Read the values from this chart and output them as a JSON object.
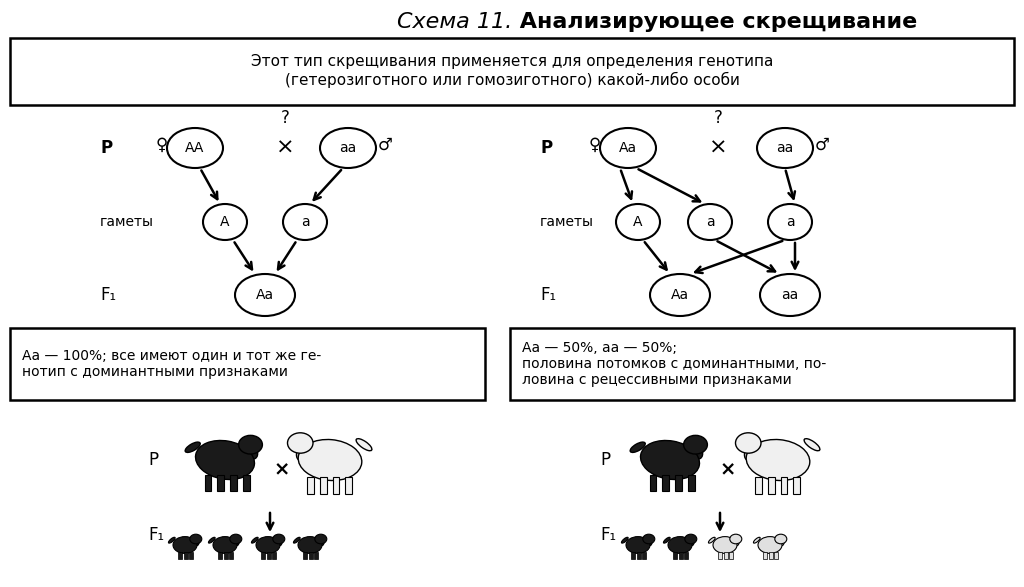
{
  "title_italic": "Схема 11.",
  "title_bold": " Анализирующее скрещивание",
  "subtitle": "Этот тип скрещивания применяется для определения генотипа\n(гетерозиготного или гомозиготного) какой-либо особи",
  "bg_color": "#ffffff",
  "left_box_text": "Аа — 100%; все имеют один и тот же ге-\nнотип с доминантными признаками",
  "right_box_text": "Аа — 50%, аа — 50%;\nполовина потомков с доминантными, по-\nловина с рецессивными признаками",
  "figsize": [
    10.24,
    5.87
  ],
  "dpi": 100
}
